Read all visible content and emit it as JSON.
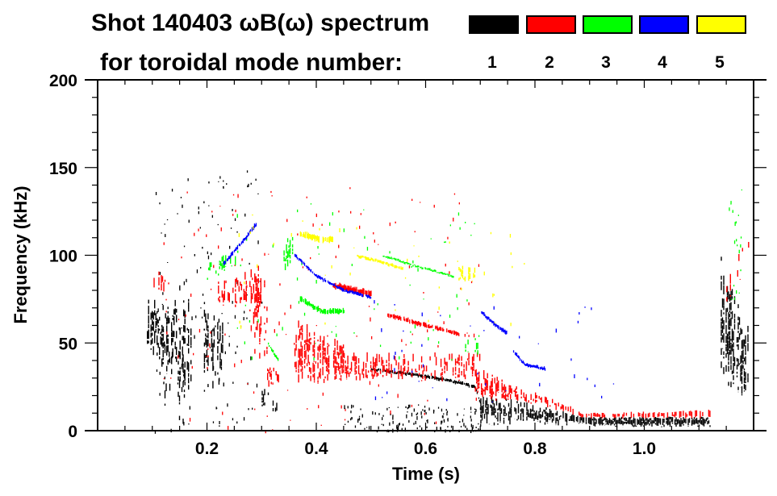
{
  "chart_data": {
    "type": "heatmap",
    "title_line1": "Shot 140403 ωB(ω) spectrum",
    "title_line2": "for toroidal mode number:",
    "xlabel": "Time (s)",
    "ylabel": "Frequency (kHz)",
    "xlim": [
      0,
      1.2
    ],
    "ylim": [
      0,
      200
    ],
    "x_ticks": [
      {
        "value": 0.2,
        "label": "0.2"
      },
      {
        "value": 0.4,
        "label": "0.4"
      },
      {
        "value": 0.6,
        "label": "0.6"
      },
      {
        "value": 0.8,
        "label": "0.8"
      },
      {
        "value": 1.0,
        "label": "1.0"
      }
    ],
    "x_minor_step": 0.05,
    "y_ticks": [
      {
        "value": 0,
        "label": "0"
      },
      {
        "value": 50,
        "label": "50"
      },
      {
        "value": 100,
        "label": "100"
      },
      {
        "value": 150,
        "label": "150"
      },
      {
        "value": 200,
        "label": "200"
      }
    ],
    "y_minor_step": 10,
    "legend": [
      {
        "mode": "1",
        "color": "#000000"
      },
      {
        "mode": "2",
        "color": "#ff0000"
      },
      {
        "mode": "3",
        "color": "#00ff00"
      },
      {
        "mode": "4",
        "color": "#0000ff"
      },
      {
        "mode": "5",
        "color": "#ffff00"
      }
    ],
    "series": [
      {
        "name": "n=1",
        "color": "#000000",
        "features": [
          {
            "kind": "band",
            "t": [
              0.09,
              0.17
            ],
            "f_low": [
              40,
              20
            ],
            "f_high": [
              80,
              75
            ],
            "density": 0.55
          },
          {
            "kind": "band",
            "t": [
              0.12,
              0.16
            ],
            "f_low": [
              10,
              0
            ],
            "f_high": [
              60,
              50
            ],
            "density": 0.3
          },
          {
            "kind": "band",
            "t": [
              0.19,
              0.23
            ],
            "f_low": [
              20,
              25
            ],
            "f_high": [
              75,
              70
            ],
            "density": 0.5
          },
          {
            "kind": "band",
            "t": [
              0.3,
              0.33
            ],
            "f_low": [
              10,
              10
            ],
            "f_high": [
              25,
              18
            ],
            "density": 0.6
          },
          {
            "kind": "line",
            "t": [
              0.5,
              0.55,
              0.6,
              0.65,
              0.69,
              0.7
            ],
            "f": [
              35,
              33,
              31,
              28,
              25,
              15
            ],
            "width": 3
          },
          {
            "kind": "band",
            "t": [
              0.7,
              0.9
            ],
            "f_low": [
              3,
              3
            ],
            "f_high": [
              22,
              8
            ],
            "density": 0.75
          },
          {
            "kind": "band",
            "t": [
              0.9,
              1.12
            ],
            "f_low": [
              2,
              2
            ],
            "f_high": [
              8,
              8
            ],
            "density": 0.85
          },
          {
            "kind": "band",
            "t": [
              1.14,
              1.19
            ],
            "f_low": [
              20,
              20
            ],
            "f_high": [
              100,
              60
            ],
            "density": 0.6
          },
          {
            "kind": "scatter",
            "t": [
              0.1,
              0.3
            ],
            "f": [
              0,
              150
            ],
            "count": 120
          },
          {
            "kind": "scatter",
            "t": [
              0.45,
              0.7
            ],
            "f": [
              0,
              15
            ],
            "count": 140
          }
        ]
      },
      {
        "name": "n=2",
        "color": "#ff0000",
        "features": [
          {
            "kind": "band",
            "t": [
              0.1,
              0.13
            ],
            "f_low": [
              75,
              80
            ],
            "f_high": [
              90,
              95
            ],
            "density": 0.5
          },
          {
            "kind": "band",
            "t": [
              0.22,
              0.3
            ],
            "f_low": [
              70,
              65
            ],
            "f_high": [
              85,
              95
            ],
            "density": 0.4
          },
          {
            "kind": "band",
            "t": [
              0.28,
              0.31
            ],
            "f_low": [
              40,
              40
            ],
            "f_high": [
              90,
              85
            ],
            "density": 0.5
          },
          {
            "kind": "band",
            "t": [
              0.31,
              0.33
            ],
            "f_low": [
              25,
              25
            ],
            "f_high": [
              40,
              35
            ],
            "density": 0.6
          },
          {
            "kind": "band",
            "t": [
              0.36,
              0.45
            ],
            "f_low": [
              25,
              28
            ],
            "f_high": [
              65,
              50
            ],
            "density": 0.65
          },
          {
            "kind": "band",
            "t": [
              0.45,
              0.7
            ],
            "f_low": [
              28,
              28
            ],
            "f_high": [
              45,
              45
            ],
            "density": 0.55
          },
          {
            "kind": "line",
            "t": [
              0.43,
              0.5
            ],
            "f": [
              83,
              78
            ],
            "width": 6
          },
          {
            "kind": "line",
            "t": [
              0.53,
              0.6,
              0.66
            ],
            "f": [
              66,
              60,
              55
            ],
            "width": 4
          },
          {
            "kind": "band",
            "t": [
              0.69,
              0.8
            ],
            "f_low": [
              18,
              15
            ],
            "f_high": [
              38,
              20
            ],
            "density": 0.7
          },
          {
            "kind": "band",
            "t": [
              0.8,
              0.88
            ],
            "f_low": [
              15,
              8
            ],
            "f_high": [
              22,
              12
            ],
            "density": 0.6
          },
          {
            "kind": "band",
            "t": [
              0.88,
              1.12
            ],
            "f_low": [
              7,
              7
            ],
            "f_high": [
              10,
              12
            ],
            "density": 0.6
          },
          {
            "kind": "band",
            "t": [
              1.15,
              1.19
            ],
            "f_low": [
              70,
              95
            ],
            "f_high": [
              85,
              115
            ],
            "density": 0.35
          },
          {
            "kind": "scatter",
            "t": [
              0.12,
              0.7
            ],
            "f": [
              0,
              140
            ],
            "count": 150
          }
        ]
      },
      {
        "name": "n=3",
        "color": "#00ff00",
        "features": [
          {
            "kind": "band",
            "t": [
              0.2,
              0.26
            ],
            "f_low": [
              85,
              95
            ],
            "f_high": [
              95,
              108
            ],
            "density": 0.45
          },
          {
            "kind": "band",
            "t": [
              0.34,
              0.36
            ],
            "f_low": [
              90,
              95
            ],
            "f_high": [
              110,
              115
            ],
            "density": 0.5
          },
          {
            "kind": "line",
            "t": [
              0.31,
              0.33
            ],
            "f": [
              50,
              40
            ],
            "width": 3
          },
          {
            "kind": "line",
            "t": [
              0.37,
              0.41,
              0.45
            ],
            "f": [
              75,
              68,
              68
            ],
            "width": 5
          },
          {
            "kind": "line",
            "t": [
              0.52,
              0.58,
              0.65
            ],
            "f": [
              100,
              94,
              88
            ],
            "width": 2
          },
          {
            "kind": "band",
            "t": [
              0.67,
              0.7
            ],
            "f_low": [
              45,
              42
            ],
            "f_high": [
              55,
              55
            ],
            "density": 0.4
          },
          {
            "kind": "scatter",
            "t": [
              0.25,
              0.7
            ],
            "f": [
              40,
              130
            ],
            "count": 70
          },
          {
            "kind": "scatter",
            "t": [
              1.15,
              1.18
            ],
            "f": [
              75,
              140
            ],
            "count": 20
          }
        ]
      },
      {
        "name": "n=4",
        "color": "#0000ff",
        "features": [
          {
            "kind": "line",
            "t": [
              0.23,
              0.27,
              0.29
            ],
            "f": [
              95,
              110,
              118
            ],
            "width": 4
          },
          {
            "kind": "line",
            "t": [
              0.36,
              0.4,
              0.45,
              0.5
            ],
            "f": [
              100,
              88,
              80,
              76
            ],
            "width": 3
          },
          {
            "kind": "line",
            "t": [
              0.7,
              0.72,
              0.75
            ],
            "f": [
              68,
              62,
              55
            ],
            "width": 4
          },
          {
            "kind": "line",
            "t": [
              0.76,
              0.78,
              0.82
            ],
            "f": [
              45,
              38,
              35
            ],
            "width": 3
          },
          {
            "kind": "scatter",
            "t": [
              0.5,
              0.95
            ],
            "f": [
              15,
              75
            ],
            "count": 40
          }
        ]
      },
      {
        "name": "n=5",
        "color": "#ffff00",
        "features": [
          {
            "kind": "line",
            "t": [
              0.37,
              0.41,
              0.43
            ],
            "f": [
              112,
              109,
              109
            ],
            "width": 6
          },
          {
            "kind": "line",
            "t": [
              0.47,
              0.52,
              0.56
            ],
            "f": [
              100,
              96,
              92
            ],
            "width": 3
          },
          {
            "kind": "band",
            "t": [
              0.66,
              0.69
            ],
            "f_low": [
              85,
              85
            ],
            "f_high": [
              95,
              93
            ],
            "density": 0.7
          },
          {
            "kind": "scatter",
            "t": [
              0.25,
              0.8
            ],
            "f": [
              60,
              125
            ],
            "count": 40
          }
        ]
      }
    ]
  }
}
